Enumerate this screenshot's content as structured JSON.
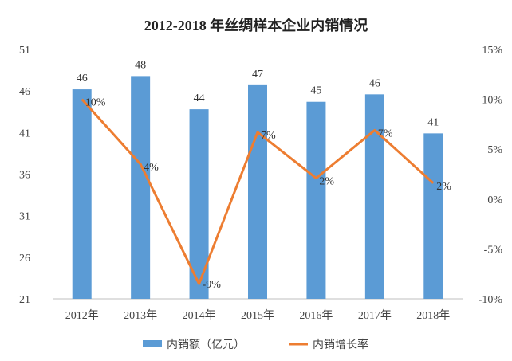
{
  "chart_data": {
    "type": "bar+line",
    "title": "2012-2018 年丝绸样本企业内销情况",
    "categories": [
      "2012年",
      "2013年",
      "2014年",
      "2015年",
      "2016年",
      "2017年",
      "2018年"
    ],
    "series": [
      {
        "name": "内销额（亿元）",
        "type": "bar",
        "axis": "left",
        "color": "#5b9bd5",
        "values": [
          46.2,
          47.8,
          43.8,
          46.7,
          44.7,
          45.6,
          40.9
        ],
        "labels": [
          "46",
          "48",
          "44",
          "47",
          "45",
          "46",
          "41"
        ]
      },
      {
        "name": "内销增长率",
        "type": "line",
        "axis": "right",
        "color": "#ed7d31",
        "values": [
          10,
          3.5,
          -8.5,
          6.7,
          2.1,
          6.9,
          1.6
        ],
        "labels": [
          "10%",
          "4%",
          "-9%",
          "7%",
          "2%",
          "7%",
          "2%"
        ]
      }
    ],
    "y_left": {
      "min": 21,
      "max": 51,
      "ticks": [
        51,
        46,
        41,
        36,
        31,
        26,
        21
      ]
    },
    "y_right": {
      "min": -10,
      "max": 15,
      "ticks": [
        "15%",
        "10%",
        "5%",
        "0%",
        "-5%",
        "-10%"
      ]
    },
    "grid": false,
    "legend": "bottom"
  }
}
